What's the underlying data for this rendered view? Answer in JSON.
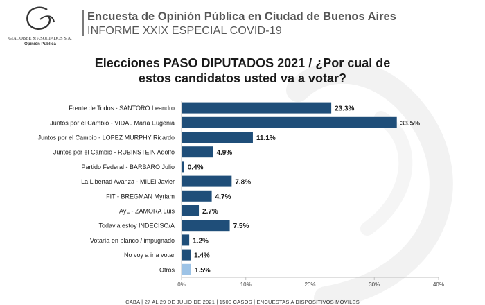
{
  "header": {
    "company": "GIACOBBE & ASOCIADOS S.A.",
    "tagline": "Opinión Pública",
    "title": "Encuesta de Opinión Pública en Ciudad de Buenos Aires",
    "subtitle": "INFORME XXIX ESPECIAL COVID-19"
  },
  "chart_data": {
    "type": "bar",
    "orientation": "horizontal",
    "title_line1": "Elecciones PASO DIPUTADOS 2021 / ¿Por cual de",
    "title_line2": "estos candidatos usted va a votar?",
    "categories": [
      "Frente de Todos - SANTORO Leandro",
      "Juntos por el Cambio - VIDAL María Eugenia",
      "Juntos por el Cambio - LOPEZ MURPHY Ricardo",
      "Juntos por el Cambio - RUBINSTEIN Adolfo",
      "Partido Federal - BARBARO Julio",
      "La Libertad Avanza - MILEI Javier",
      "FIT - BREGMAN Myriam",
      "AyL - ZAMORA Luis",
      "Todavia estoy INDECISO/A",
      "Votaría en blanco / impugnado",
      "No voy a ir a votar",
      "Otros"
    ],
    "values": [
      23.3,
      33.5,
      11.1,
      4.9,
      0.4,
      7.8,
      4.7,
      2.7,
      7.5,
      1.2,
      1.4,
      1.5
    ],
    "value_labels": [
      "23.3%",
      "33.5%",
      "11.1%",
      "4.9%",
      "0.4%",
      "7.8%",
      "4.7%",
      "2.7%",
      "7.5%",
      "1.2%",
      "1.4%",
      "1.5%"
    ],
    "xlim": [
      0,
      40
    ],
    "xticks": [
      0,
      10,
      20,
      30,
      40
    ],
    "xtick_labels": [
      "0%",
      "10%",
      "20%",
      "30%",
      "40%"
    ],
    "grid": false,
    "colors": {
      "bar": "#1f4e79",
      "bar_highlight": "#9dc3e6"
    },
    "highlight_index": 11
  },
  "footer": "CABA | 27 AL 29 DE JULIO DE 2021 | 1500 CASOS | ENCUESTAS A DISPOSITIVOS MÓVILES"
}
